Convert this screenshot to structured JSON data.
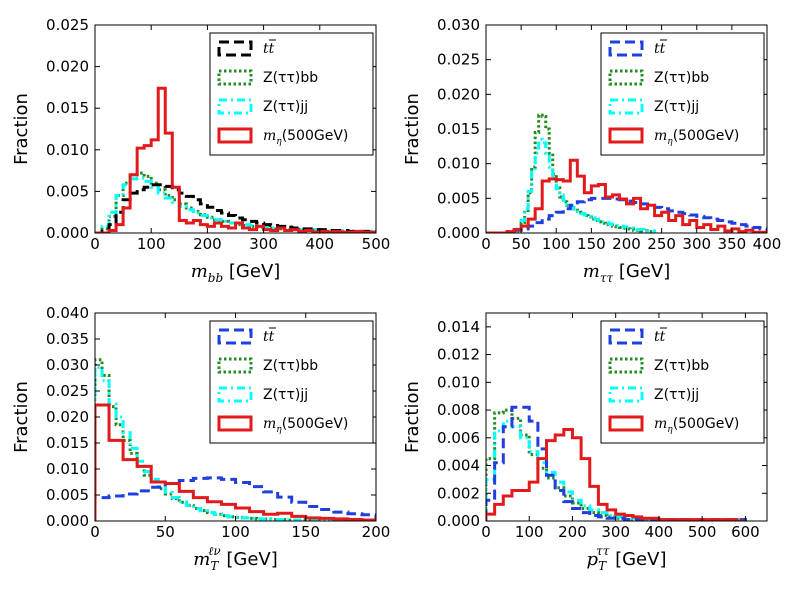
{
  "colors": {
    "ttbar": "#000000",
    "ztt_jj": "#00ffff",
    "signal": "#e31a1c",
    "ztt_bb": "#228b22",
    "ttbar_blue": "#1f3fe0"
  },
  "chart_data": [
    {
      "type": "histogram",
      "xlabel": "m_bb [GeV]",
      "xlabel_math": "m",
      "xlabel_sub": "bb",
      "xlabel_unit": " [GeV]",
      "ylabel": "Fraction",
      "xlim": [
        0,
        500
      ],
      "ylim": [
        0,
        0.025
      ],
      "xticks": [
        0,
        100,
        200,
        300,
        400,
        500
      ],
      "yticks": [
        0.0,
        0.005,
        0.01,
        0.015,
        0.02,
        0.025
      ],
      "ytick_labels": [
        "0.000",
        "0.005",
        "0.010",
        "0.015",
        "0.020",
        "0.025"
      ],
      "legend_position": "top-right",
      "series": [
        {
          "name": "tt̄",
          "style": "dashed",
          "color_key": "ttbar",
          "bin_width": 12.5,
          "x0": 0,
          "values": [
            0,
            0.0002,
            0.001,
            0.0025,
            0.004,
            0.0048,
            0.0052,
            0.0055,
            0.0058,
            0.0058,
            0.0056,
            0.0052,
            0.0048,
            0.0044,
            0.004,
            0.0035,
            0.0031,
            0.0027,
            0.0024,
            0.0021,
            0.0018,
            0.0016,
            0.0014,
            0.0012,
            0.001,
            0.0009,
            0.0008,
            0.0007,
            0.0006,
            0.0005,
            0.0005,
            0.0004,
            0.0004,
            0.0003,
            0.0003,
            0.0003,
            0.0002,
            0.0002,
            0.0002,
            0.0002
          ]
        },
        {
          "name": "Z(ττ)bb",
          "style": "dotted",
          "color_key": "ztt_bb",
          "bin_width": 12.5,
          "x0": 0,
          "values": [
            0,
            0.0005,
            0.002,
            0.0045,
            0.006,
            0.007,
            0.0072,
            0.0068,
            0.006,
            0.0052,
            0.0045,
            0.004,
            0.0035,
            0.003,
            0.0026,
            0.0022,
            0.0019,
            0.0016,
            0.0014,
            0.0012,
            0.001,
            0.0009,
            0.0008,
            0.0007,
            0.0006,
            0.0005,
            0.0005,
            0.0004,
            0.0004,
            0.0003,
            0.0003,
            0.0003,
            0.0002,
            0.0002,
            0.0002,
            0.0002,
            0.0002,
            0.0001,
            0.0001,
            0.0001
          ]
        },
        {
          "name": "Z(ττ)jj",
          "style": "dashdot",
          "color_key": "ztt_jj",
          "bin_width": 12.5,
          "x0": 0,
          "values": [
            0,
            0.0008,
            0.0025,
            0.0045,
            0.0058,
            0.0065,
            0.0066,
            0.0062,
            0.0055,
            0.0048,
            0.0042,
            0.0037,
            0.0032,
            0.0028,
            0.0024,
            0.0021,
            0.0018,
            0.0016,
            0.0014,
            0.0012,
            0.0011,
            0.001,
            0.0009,
            0.0008,
            0.0007,
            0.0006,
            0.0006,
            0.0005,
            0.0005,
            0.0004,
            0.0004,
            0.0004,
            0.0003,
            0.0003,
            0.0003,
            0.0003,
            0.0002,
            0.0002,
            0.0002,
            0.0002
          ]
        },
        {
          "name": "m_η(500GeV)",
          "style": "solid",
          "color_key": "signal",
          "bin_width": 12.5,
          "x0": 0,
          "values": [
            0,
            0,
            0.0003,
            0.001,
            0.003,
            0.007,
            0.0102,
            0.0105,
            0.0112,
            0.0174,
            0.012,
            0.0055,
            0.0015,
            0.0012,
            0.0015,
            0.001,
            0.0008,
            0.0012,
            0.0008,
            0.0006,
            0.0012,
            0.0006,
            0.0004,
            0.0008,
            0.0004,
            0.0003,
            0.0006,
            0.0003,
            0.0004,
            0.0002,
            0.0003,
            0.0001,
            0.0002,
            0.0001,
            0.0002,
            0.0001,
            0.0001,
            0.0002,
            0.0001,
            0.0001
          ]
        }
      ]
    },
    {
      "type": "histogram",
      "xlabel": "m_ττ [GeV]",
      "xlabel_math": "m",
      "xlabel_sub": "ττ",
      "xlabel_unit": " [GeV]",
      "ylabel": "Fraction",
      "xlim": [
        0,
        400
      ],
      "ylim": [
        0,
        0.03
      ],
      "xticks": [
        0,
        50,
        100,
        150,
        200,
        250,
        300,
        350,
        400
      ],
      "yticks": [
        0.0,
        0.005,
        0.01,
        0.015,
        0.02,
        0.025,
        0.03
      ],
      "ytick_labels": [
        "0.000",
        "0.005",
        "0.010",
        "0.015",
        "0.020",
        "0.025",
        "0.030"
      ],
      "legend_position": "top-right",
      "series": [
        {
          "name": "tt̄",
          "style": "dashed",
          "color_key": "ttbar_blue",
          "bin_width": 10,
          "x0": 0,
          "values": [
            0,
            0,
            0,
            0.0002,
            0.0004,
            0.0006,
            0.001,
            0.0015,
            0.002,
            0.0025,
            0.003,
            0.0035,
            0.004,
            0.0045,
            0.0048,
            0.005,
            0.005,
            0.005,
            0.0049,
            0.0048,
            0.0046,
            0.0044,
            0.0042,
            0.004,
            0.0037,
            0.0035,
            0.0032,
            0.003,
            0.0028,
            0.0026,
            0.0024,
            0.0022,
            0.002,
            0.0018,
            0.0016,
            0.0014,
            0.0012,
            0.001,
            0.0008,
            0.0006
          ]
        },
        {
          "name": "Z(ττ)bb",
          "style": "dotted",
          "color_key": "ztt_bb",
          "bin_width": 5,
          "x0": 40,
          "values": [
            0,
            0.0005,
            0.0015,
            0.003,
            0.0058,
            0.0095,
            0.0145,
            0.017,
            0.0168,
            0.015,
            0.0115,
            0.0085,
            0.0065,
            0.0052,
            0.0045,
            0.004,
            0.0036,
            0.0033,
            0.003,
            0.0028,
            0.0025,
            0.0023,
            0.002,
            0.0018,
            0.0016,
            0.0014,
            0.0012,
            0.0011,
            0.001,
            0.0009,
            0.0008,
            0.0007,
            0.0006,
            0.0005,
            0.0004,
            0.0004,
            0.0003,
            0.0003,
            0.0002,
            0.0002
          ]
        },
        {
          "name": "Z(ττ)jj",
          "style": "dashdot",
          "color_key": "ztt_jj",
          "bin_width": 5,
          "x0": 40,
          "values": [
            0,
            0.0006,
            0.0018,
            0.0035,
            0.006,
            0.0088,
            0.0115,
            0.0135,
            0.013,
            0.0115,
            0.0095,
            0.0078,
            0.0064,
            0.0055,
            0.0047,
            0.0041,
            0.0037,
            0.0034,
            0.0031,
            0.0028,
            0.0026,
            0.0024,
            0.0022,
            0.002,
            0.0018,
            0.0016,
            0.0015,
            0.0013,
            0.0012,
            0.0011,
            0.001,
            0.0009,
            0.0008,
            0.0007,
            0.0006,
            0.0005,
            0.0005,
            0.0004,
            0.0003,
            0.0003
          ]
        },
        {
          "name": "m_η(500GeV)",
          "style": "solid",
          "color_key": "signal",
          "bin_width": 10,
          "x0": 0,
          "values": [
            0,
            0,
            0,
            0.0002,
            0.0005,
            0.001,
            0.002,
            0.0035,
            0.0075,
            0.0078,
            0.0077,
            0.0075,
            0.0105,
            0.0082,
            0.0058,
            0.0068,
            0.007,
            0.0052,
            0.0055,
            0.0049,
            0.0042,
            0.005,
            0.0035,
            0.004,
            0.0025,
            0.003,
            0.0018,
            0.0025,
            0.0012,
            0.0018,
            0.0008,
            0.0012,
            0.0005,
            0.001,
            0.0003,
            0.0006,
            0.0002,
            0.0004,
            0.0001,
            0.0001
          ]
        }
      ]
    },
    {
      "type": "histogram",
      "xlabel": "m_T^ℓν [GeV]",
      "xlabel_math": "m",
      "xlabel_sub": "T",
      "xlabel_sup": "ℓν",
      "xlabel_unit": "  [GeV]",
      "ylabel": "Fraction",
      "xlim": [
        0,
        200
      ],
      "ylim": [
        0,
        0.04
      ],
      "xticks": [
        0,
        50,
        100,
        150,
        200
      ],
      "yticks": [
        0.0,
        0.005,
        0.01,
        0.015,
        0.02,
        0.025,
        0.03,
        0.035,
        0.04
      ],
      "ytick_labels": [
        "0.000",
        "0.005",
        "0.010",
        "0.015",
        "0.020",
        "0.025",
        "0.030",
        "0.035",
        "0.040"
      ],
      "legend_position": "top-right",
      "series": [
        {
          "name": "tt̄",
          "style": "dashed",
          "color_key": "ttbar_blue",
          "bin_width": 10,
          "x0": 0,
          "values": [
            0.0045,
            0.0048,
            0.0052,
            0.0058,
            0.0065,
            0.0072,
            0.0078,
            0.0082,
            0.0083,
            0.008,
            0.0074,
            0.0066,
            0.0056,
            0.0046,
            0.0036,
            0.0028,
            0.0022,
            0.0017,
            0.0014,
            0.0012
          ]
        },
        {
          "name": "Z(ττ)bb",
          "style": "dotted",
          "color_key": "ztt_bb",
          "bin_width": 5,
          "x0": 0,
          "values": [
            0.031,
            0.028,
            0.022,
            0.0185,
            0.0155,
            0.013,
            0.0105,
            0.0088,
            0.0075,
            0.0062,
            0.0052,
            0.0043,
            0.0036,
            0.003,
            0.0024,
            0.002,
            0.0016,
            0.0013,
            0.001,
            0.0008,
            0.0007,
            0.0006,
            0.0005,
            0.0004,
            0.0004,
            0.0003,
            0.0003,
            0.0002,
            0.0002,
            0.0002,
            0.0002,
            0.0001,
            0.0001,
            0.0001,
            0.0001,
            0.0001,
            0.0001,
            0.0001,
            0.0001,
            0.0001
          ]
        },
        {
          "name": "Z(ττ)jj",
          "style": "dashdot",
          "color_key": "ztt_jj",
          "bin_width": 5,
          "x0": 0,
          "values": [
            0.0295,
            0.027,
            0.0225,
            0.02,
            0.017,
            0.014,
            0.0115,
            0.0095,
            0.008,
            0.0066,
            0.0055,
            0.0045,
            0.0037,
            0.003,
            0.0024,
            0.002,
            0.0016,
            0.0013,
            0.001,
            0.0008,
            0.0007,
            0.0006,
            0.0005,
            0.0004,
            0.0004,
            0.0003,
            0.0003,
            0.0002,
            0.0002,
            0.0002,
            0.0002,
            0.0001,
            0.0001,
            0.0001,
            0.0001,
            0.0001,
            0.0001,
            0.0001,
            0.0001,
            0.0001
          ]
        },
        {
          "name": "m_η(500GeV)",
          "style": "solid",
          "color_key": "signal",
          "bin_width": 10,
          "x0": 0,
          "values": [
            0.0223,
            0.0155,
            0.0118,
            0.0105,
            0.0075,
            0.0072,
            0.0057,
            0.0045,
            0.0037,
            0.0032,
            0.0025,
            0.0018,
            0.0013,
            0.0015,
            0.0009,
            0.0006,
            0.0005,
            0.0004,
            0.0003,
            0.0002
          ]
        }
      ]
    },
    {
      "type": "histogram",
      "xlabel": "p_T^ττ [GeV]",
      "xlabel_math": "p",
      "xlabel_sub": "T",
      "xlabel_sup": "ττ",
      "xlabel_unit": " [GeV]",
      "ylabel": "Fraction",
      "xlim": [
        0,
        650
      ],
      "ylim": [
        0,
        0.015
      ],
      "xticks": [
        0,
        100,
        200,
        300,
        400,
        500,
        600
      ],
      "yticks": [
        0.0,
        0.002,
        0.004,
        0.006,
        0.008,
        0.01,
        0.012,
        0.014
      ],
      "ytick_labels": [
        "0.000",
        "0.002",
        "0.004",
        "0.006",
        "0.008",
        "0.010",
        "0.012",
        "0.014"
      ],
      "legend_position": "top-right",
      "series": [
        {
          "name": "tt̄",
          "style": "dashed",
          "color_key": "ttbar_blue",
          "bin_width": 20,
          "x0": 0,
          "values": [
            0.0015,
            0.0042,
            0.0068,
            0.0082,
            0.0082,
            0.0072,
            0.0052,
            0.0033,
            0.0022,
            0.0014,
            0.0009,
            0.0006,
            0.0004,
            0.0003,
            0.0002,
            0.0002,
            0.0001,
            0.0001,
            0.0001,
            0.0001,
            0.0001,
            0.0001,
            0.0001,
            0.0001,
            0.0001,
            0.0001,
            0.0001,
            0.0001,
            0.0001,
            0.0001
          ]
        },
        {
          "name": "Z(ττ)bb",
          "style": "dotted",
          "color_key": "ztt_bb",
          "bin_width": 20,
          "x0": 0,
          "values": [
            0.0045,
            0.0078,
            0.008,
            0.0074,
            0.0062,
            0.0048,
            0.0038,
            0.0031,
            0.0024,
            0.0018,
            0.0013,
            0.0009,
            0.0006,
            0.0004,
            0.0003,
            0.0002,
            0.0001,
            0.0001,
            0.0001,
            0.0001,
            0.0001,
            0.0001,
            0.0001,
            0.0001,
            0.0001,
            0.0001,
            0.0001,
            0.0001,
            0.0001,
            0.0001
          ]
        },
        {
          "name": "Z(ττ)jj",
          "style": "dashdot",
          "color_key": "ztt_jj",
          "bin_width": 20,
          "x0": 0,
          "values": [
            0.003,
            0.0065,
            0.0072,
            0.0068,
            0.006,
            0.005,
            0.0042,
            0.0035,
            0.0028,
            0.0021,
            0.0015,
            0.0011,
            0.0008,
            0.0006,
            0.0004,
            0.0003,
            0.0002,
            0.0002,
            0.0001,
            0.0001,
            0.0001,
            0.0001,
            0.0001,
            0.0001,
            0.0001,
            0.0001,
            0.0001,
            0.0001,
            0.0001,
            0.0001
          ]
        },
        {
          "name": "m_η(500GeV)",
          "style": "solid",
          "color_key": "signal",
          "bin_width": 20,
          "x0": 0,
          "values": [
            0.0005,
            0.0012,
            0.0018,
            0.0022,
            0.0022,
            0.0028,
            0.0045,
            0.0058,
            0.0062,
            0.0066,
            0.006,
            0.0045,
            0.0025,
            0.0012,
            0.0008,
            0.0005,
            0.0004,
            0.0003,
            0.0002,
            0.0002,
            0.0001,
            0.0001,
            0.0001,
            0.0001,
            0.0001,
            0.0001,
            0.0001,
            0.0001,
            0.0001,
            0.0
          ]
        }
      ]
    }
  ],
  "legend_entries": [
    {
      "key": "tt",
      "label_main": "t",
      "label_bar": "t",
      "style": "dashed"
    },
    {
      "key": "ztt_bb",
      "label": "Z(ττ)bb",
      "style": "dotted"
    },
    {
      "key": "ztt_jj",
      "label": "Z(ττ)jj",
      "style": "dashdot"
    },
    {
      "key": "signal",
      "label_math": "m",
      "label_sub": "η",
      "label_unit": "(500GeV)",
      "style": "solid"
    }
  ]
}
